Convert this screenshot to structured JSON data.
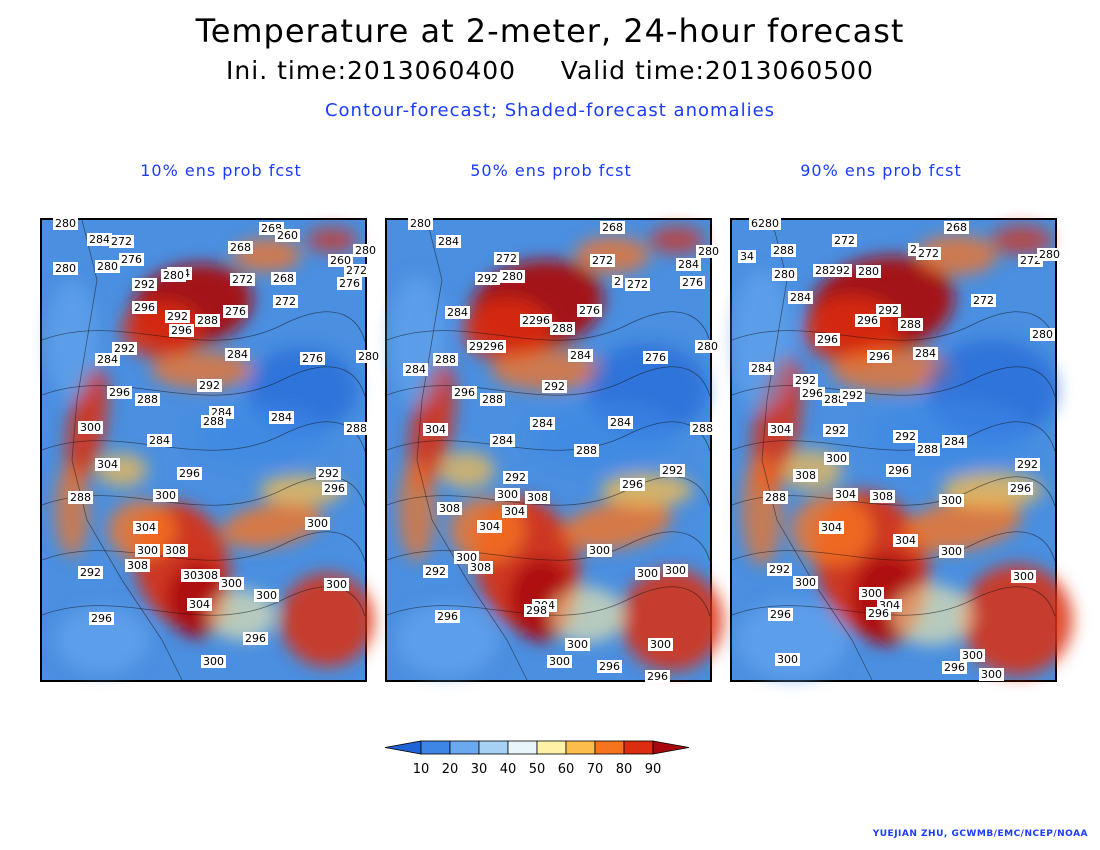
{
  "header": {
    "title": "Temperature at 2-meter, 24-hour forecast",
    "subtitle": "Ini. time:2013060400     Valid time:2013060500",
    "description": "Contour-forecast; Shaded-forecast anomalies"
  },
  "panels": [
    {
      "title": "10% ens prob fcst",
      "labels": [
        [
          "280",
          12,
          7
        ],
        [
          "284",
          46,
          23
        ],
        [
          "272",
          68,
          25
        ],
        [
          "276",
          78,
          43
        ],
        [
          "280",
          12,
          52
        ],
        [
          "280",
          54,
          50
        ],
        [
          "268",
          187,
          31
        ],
        [
          "268",
          218,
          12
        ],
        [
          "260",
          234,
          19
        ],
        [
          "280",
          312,
          34
        ],
        [
          "260",
          287,
          44
        ],
        [
          "272",
          303,
          54
        ],
        [
          "276",
          296,
          67
        ],
        [
          "268",
          230,
          62
        ],
        [
          "272",
          189,
          63
        ],
        [
          "272",
          232,
          85
        ],
        [
          "276",
          182,
          95
        ],
        [
          "284",
          126,
          57
        ],
        [
          "280",
          120,
          59
        ],
        [
          "292",
          91,
          68
        ],
        [
          "296",
          91,
          91
        ],
        [
          "292",
          124,
          100
        ],
        [
          "296",
          128,
          114
        ],
        [
          "288",
          154,
          104
        ],
        [
          "292",
          71,
          132
        ],
        [
          "284",
          54,
          143
        ],
        [
          "284",
          184,
          138
        ],
        [
          "276",
          259,
          142
        ],
        [
          "280",
          315,
          140
        ],
        [
          "292",
          156,
          169
        ],
        [
          "296",
          66,
          176
        ],
        [
          "288",
          94,
          183
        ],
        [
          "284",
          168,
          196
        ],
        [
          "288",
          160,
          205
        ],
        [
          "284",
          228,
          201
        ],
        [
          "288",
          303,
          212
        ],
        [
          "300",
          37,
          211
        ],
        [
          "284",
          106,
          224
        ],
        [
          "304",
          54,
          248
        ],
        [
          "296",
          136,
          257
        ],
        [
          "300",
          112,
          279
        ],
        [
          "292",
          275,
          257
        ],
        [
          "296",
          281,
          272
        ],
        [
          "288",
          27,
          281
        ],
        [
          "304",
          92,
          311
        ],
        [
          "300",
          94,
          334
        ],
        [
          "308",
          122,
          334
        ],
        [
          "308",
          84,
          349
        ],
        [
          "300",
          264,
          307
        ],
        [
          "292",
          37,
          356
        ],
        [
          "30308",
          140,
          359
        ],
        [
          "300",
          178,
          367
        ],
        [
          "300",
          213,
          379
        ],
        [
          "300",
          283,
          368
        ],
        [
          "304",
          146,
          388
        ],
        [
          "296",
          48,
          402
        ],
        [
          "296",
          202,
          422
        ],
        [
          "300",
          160,
          445
        ]
      ]
    },
    {
      "title": "50% ens prob fcst",
      "labels": [
        [
          "280",
          22,
          7
        ],
        [
          "284",
          50,
          25
        ],
        [
          "272",
          108,
          42
        ],
        [
          "268",
          214,
          11
        ],
        [
          "292",
          89,
          62
        ],
        [
          "280",
          114,
          60
        ],
        [
          "272",
          204,
          44
        ],
        [
          "2",
          226,
          65
        ],
        [
          "272",
          239,
          68
        ],
        [
          "284",
          290,
          48
        ],
        [
          "280",
          310,
          35
        ],
        [
          "276",
          294,
          66
        ],
        [
          "284",
          59,
          96
        ],
        [
          "2296",
          134,
          104
        ],
        [
          "288",
          164,
          112
        ],
        [
          "276",
          191,
          94
        ],
        [
          "284",
          182,
          139
        ],
        [
          "276",
          257,
          141
        ],
        [
          "280",
          309,
          130
        ],
        [
          "29296",
          81,
          130
        ],
        [
          "288",
          47,
          143
        ],
        [
          "284",
          17,
          153
        ],
        [
          "296",
          66,
          176
        ],
        [
          "288",
          94,
          183
        ],
        [
          "292",
          156,
          170
        ],
        [
          "284",
          144,
          207
        ],
        [
          "284",
          222,
          206
        ],
        [
          "288",
          188,
          234
        ],
        [
          "288",
          304,
          212
        ],
        [
          "304",
          37,
          213
        ],
        [
          "284",
          104,
          224
        ],
        [
          "292",
          117,
          261
        ],
        [
          "296",
          234,
          268
        ],
        [
          "292",
          274,
          254
        ],
        [
          "300",
          109,
          278
        ],
        [
          "308",
          139,
          281
        ],
        [
          "304",
          116,
          295
        ],
        [
          "308",
          51,
          292
        ],
        [
          "304",
          91,
          310
        ],
        [
          "300",
          201,
          334
        ],
        [
          "292",
          37,
          355
        ],
        [
          "300",
          68,
          341
        ],
        [
          "308",
          82,
          351
        ],
        [
          "300",
          249,
          357
        ],
        [
          "300",
          277,
          354
        ],
        [
          "304",
          146,
          389
        ],
        [
          "298",
          138,
          394
        ],
        [
          "296",
          49,
          400
        ],
        [
          "300",
          179,
          428
        ],
        [
          "300",
          262,
          428
        ],
        [
          "300",
          161,
          445
        ],
        [
          "296",
          211,
          450
        ],
        [
          "296",
          259,
          460
        ]
      ]
    },
    {
      "title": "90% ens prob fcst",
      "labels": [
        [
          "6280",
          18,
          7
        ],
        [
          "288",
          40,
          34
        ],
        [
          "272",
          101,
          24
        ],
        [
          "268",
          213,
          11
        ],
        [
          "2",
          177,
          33
        ],
        [
          "272",
          185,
          37
        ],
        [
          "272",
          287,
          44
        ],
        [
          "280",
          306,
          38
        ],
        [
          "34",
          7,
          40
        ],
        [
          "280",
          41,
          58
        ],
        [
          "28292",
          82,
          54
        ],
        [
          "280",
          125,
          55
        ],
        [
          "284",
          57,
          81
        ],
        [
          "292",
          145,
          94
        ],
        [
          "296",
          124,
          104
        ],
        [
          "288",
          167,
          108
        ],
        [
          "272",
          240,
          84
        ],
        [
          "280",
          299,
          118
        ],
        [
          "296",
          84,
          123
        ],
        [
          "296",
          136,
          140
        ],
        [
          "284",
          182,
          137
        ],
        [
          "284",
          18,
          152
        ],
        [
          "292",
          62,
          164
        ],
        [
          "296",
          69,
          177
        ],
        [
          "288",
          91,
          183
        ],
        [
          "292",
          109,
          179
        ],
        [
          "304",
          37,
          213
        ],
        [
          "292",
          92,
          214
        ],
        [
          "292",
          162,
          220
        ],
        [
          "288",
          184,
          233
        ],
        [
          "284",
          211,
          225
        ],
        [
          "300",
          93,
          242
        ],
        [
          "296",
          155,
          254
        ],
        [
          "292",
          284,
          248
        ],
        [
          "308",
          62,
          259
        ],
        [
          "296",
          277,
          272
        ],
        [
          "288",
          32,
          281
        ],
        [
          "304",
          102,
          278
        ],
        [
          "308",
          139,
          280
        ],
        [
          "300",
          208,
          284
        ],
        [
          "304",
          88,
          311
        ],
        [
          "304",
          162,
          324
        ],
        [
          "300",
          208,
          335
        ],
        [
          "300",
          280,
          360
        ],
        [
          "292",
          36,
          353
        ],
        [
          "300",
          62,
          366
        ],
        [
          "300",
          128,
          377
        ],
        [
          "304",
          146,
          389
        ],
        [
          "296",
          37,
          398
        ],
        [
          "296",
          135,
          397
        ],
        [
          "300",
          229,
          439
        ],
        [
          "296",
          211,
          451
        ],
        [
          "300",
          248,
          458
        ],
        [
          "300",
          44,
          443
        ]
      ]
    }
  ],
  "colorbar": {
    "ticks": [
      "10",
      "20",
      "30",
      "40",
      "50",
      "60",
      "70",
      "80",
      "90"
    ],
    "colors": [
      "#1f63d6",
      "#3d86e6",
      "#6aa9f0",
      "#a7d0f5",
      "#e8f6fa",
      "#fff1a6",
      "#fcbd4a",
      "#f7741f",
      "#dc2d11",
      "#a8070d"
    ]
  },
  "credit": "YUEJIAN ZHU, GCWMB/EMC/NCEP/NOAA"
}
